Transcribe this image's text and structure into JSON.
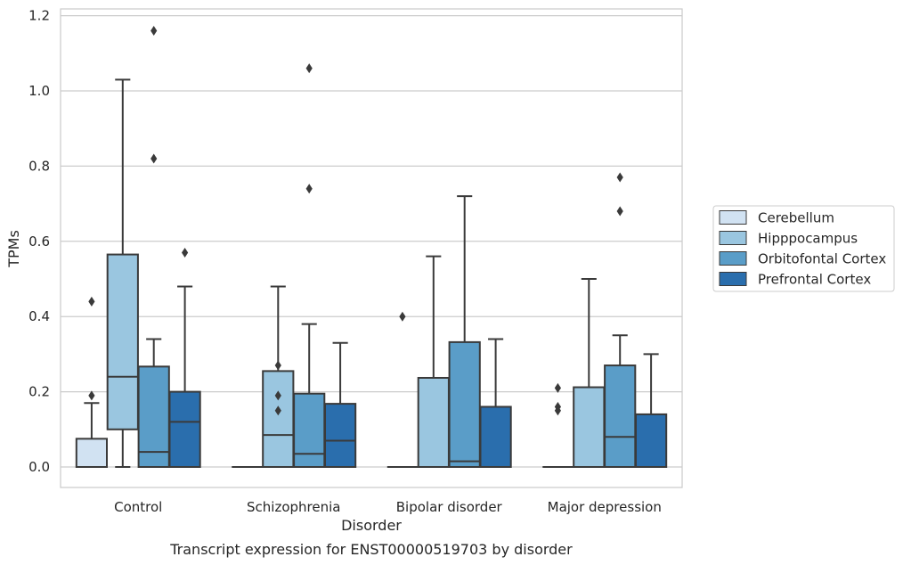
{
  "caption": "Transcript expression for ENST00000519703 by disorder",
  "chart_data": {
    "type": "box",
    "xlabel": "Disorder",
    "ylabel": "TPMs",
    "ylim": [
      -0.055,
      1.22
    ],
    "yticks": [
      0.0,
      0.2,
      0.4,
      0.6,
      0.8,
      1.0,
      1.2
    ],
    "ytick_labels": [
      "0.0",
      "0.2",
      "0.4",
      "0.6",
      "0.8",
      "1.0",
      "1.2"
    ],
    "grid": "horizontal",
    "legend_placement": "right",
    "categories": [
      "Control",
      "Schizophrenia",
      "Bipolar disorder",
      "Major depression"
    ],
    "series": [
      {
        "name": "Cerebellum",
        "color": "#d1e2f2",
        "boxes": [
          {
            "whisker_low": 0.0,
            "q1": 0.0,
            "median": 0.0,
            "q3": 0.075,
            "whisker_high": 0.17,
            "outliers": [
              0.19,
              0.44
            ]
          },
          {
            "whisker_low": 0.0,
            "q1": 0.0,
            "median": 0.0,
            "q3": 0.0,
            "whisker_high": 0.0,
            "outliers": []
          },
          {
            "whisker_low": 0.0,
            "q1": 0.0,
            "median": 0.0,
            "q3": 0.0,
            "whisker_high": 0.0,
            "outliers": [
              0.4
            ]
          },
          {
            "whisker_low": 0.0,
            "q1": 0.0,
            "median": 0.0,
            "q3": 0.0,
            "whisker_high": 0.0,
            "outliers": [
              0.15,
              0.16,
              0.21
            ]
          }
        ]
      },
      {
        "name": "Hipppocampus",
        "color": "#9ac6e0",
        "boxes": [
          {
            "whisker_low": 0.0,
            "q1": 0.1,
            "median": 0.24,
            "q3": 0.565,
            "whisker_high": 1.03,
            "outliers": []
          },
          {
            "whisker_low": 0.0,
            "q1": 0.0,
            "median": 0.085,
            "q3": 0.255,
            "whisker_high": 0.48,
            "outliers": [
              0.15,
              0.19,
              0.27
            ]
          },
          {
            "whisker_low": 0.0,
            "q1": 0.0,
            "median": 0.0,
            "q3": 0.237,
            "whisker_high": 0.56,
            "outliers": []
          },
          {
            "whisker_low": 0.0,
            "q1": 0.0,
            "median": 0.0,
            "q3": 0.212,
            "whisker_high": 0.5,
            "outliers": []
          }
        ]
      },
      {
        "name": "Orbitofontal Cortex",
        "color": "#5a9dc8",
        "boxes": [
          {
            "whisker_low": 0.0,
            "q1": 0.0,
            "median": 0.04,
            "q3": 0.267,
            "whisker_high": 0.34,
            "outliers": [
              0.82,
              1.16
            ]
          },
          {
            "whisker_low": 0.0,
            "q1": 0.0,
            "median": 0.035,
            "q3": 0.195,
            "whisker_high": 0.38,
            "outliers": [
              0.74,
              1.06
            ]
          },
          {
            "whisker_low": 0.0,
            "q1": 0.0,
            "median": 0.015,
            "q3": 0.332,
            "whisker_high": 0.72,
            "outliers": []
          },
          {
            "whisker_low": 0.0,
            "q1": 0.0,
            "median": 0.08,
            "q3": 0.27,
            "whisker_high": 0.35,
            "outliers": [
              0.68,
              0.77
            ]
          }
        ]
      },
      {
        "name": "Prefrontal Cortex",
        "color": "#2a6ead",
        "boxes": [
          {
            "whisker_low": 0.0,
            "q1": 0.0,
            "median": 0.12,
            "q3": 0.2,
            "whisker_high": 0.48,
            "outliers": [
              0.57
            ]
          },
          {
            "whisker_low": 0.0,
            "q1": 0.0,
            "median": 0.07,
            "q3": 0.168,
            "whisker_high": 0.33,
            "outliers": []
          },
          {
            "whisker_low": 0.0,
            "q1": 0.0,
            "median": 0.0,
            "q3": 0.16,
            "whisker_high": 0.34,
            "outliers": []
          },
          {
            "whisker_low": 0.0,
            "q1": 0.0,
            "median": 0.0,
            "q3": 0.14,
            "whisker_high": 0.3,
            "outliers": []
          }
        ]
      }
    ]
  }
}
